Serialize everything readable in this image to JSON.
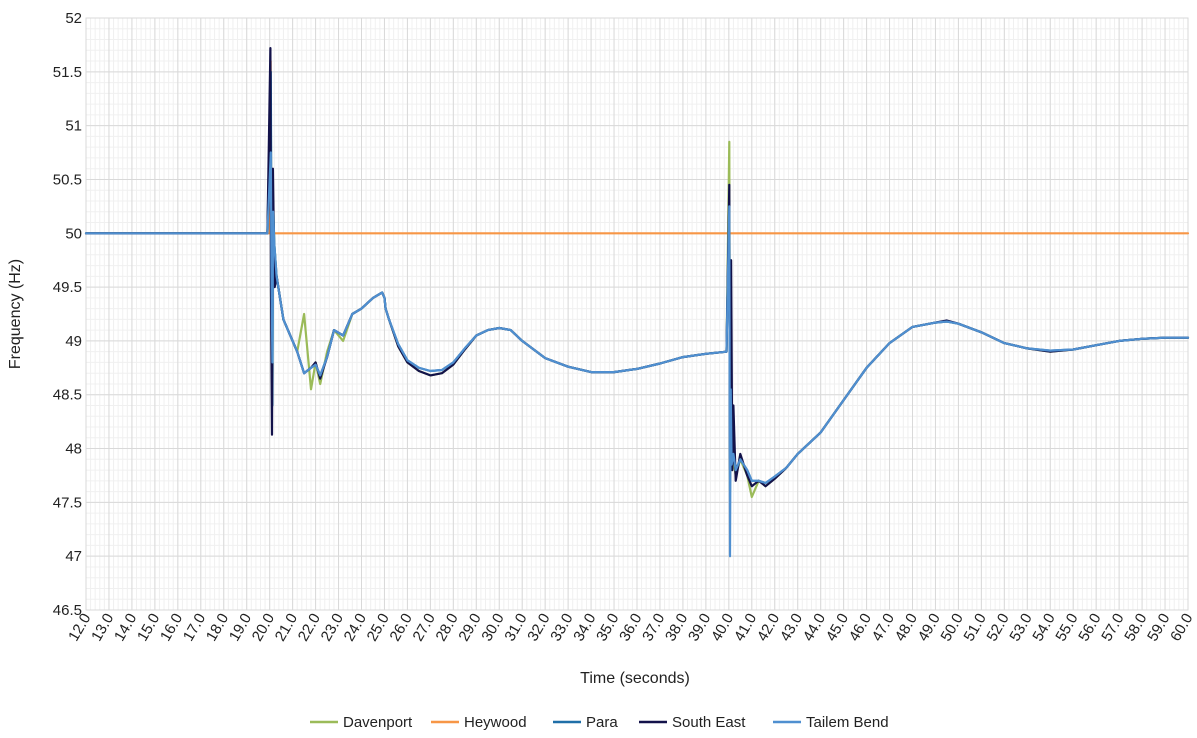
{
  "chart_data": {
    "type": "line",
    "xlabel": "Time (seconds)",
    "ylabel": "Frequency (Hz)",
    "xlim": [
      12,
      60
    ],
    "ylim": [
      46.5,
      52
    ],
    "x_ticks": [
      12,
      13,
      14,
      15,
      16,
      17,
      18,
      19,
      20,
      21,
      22,
      23,
      24,
      25,
      26,
      27,
      28,
      29,
      30,
      31,
      32,
      33,
      34,
      35,
      36,
      37,
      38,
      39,
      40,
      41,
      42,
      43,
      44,
      45,
      46,
      47,
      48,
      49,
      50,
      51,
      52,
      53,
      54,
      55,
      56,
      57,
      58,
      59,
      60
    ],
    "x_tick_labels": [
      "12.0",
      "13.0",
      "14.0",
      "15.0",
      "16.0",
      "17.0",
      "18.0",
      "19.0",
      "20.0",
      "21.0",
      "22.0",
      "23.0",
      "24.0",
      "25.0",
      "26.0",
      "27.0",
      "28.0",
      "29.0",
      "30.0",
      "31.0",
      "32.0",
      "33.0",
      "34.0",
      "35.0",
      "36.0",
      "37.0",
      "38.0",
      "39.0",
      "40.0",
      "41.0",
      "42.0",
      "43.0",
      "44.0",
      "45.0",
      "46.0",
      "47.0",
      "48.0",
      "49.0",
      "50.0",
      "51.0",
      "52.0",
      "53.0",
      "54.0",
      "55.0",
      "56.0",
      "57.0",
      "58.0",
      "59.0",
      "60.0"
    ],
    "y_ticks": [
      46.5,
      47,
      47.5,
      48,
      48.5,
      49,
      49.5,
      50,
      50.5,
      51,
      51.5,
      52
    ],
    "y_tick_labels": [
      "46.5",
      "47",
      "47.5",
      "48",
      "48.5",
      "49",
      "49.5",
      "50",
      "50.5",
      "51",
      "51.5",
      "52"
    ],
    "grid": true,
    "legend_position": "bottom",
    "series": [
      {
        "name": "Davenport",
        "color": "#9BBB59",
        "x": [
          12,
          16,
          19.9,
          20.05,
          20.08,
          20.12,
          20.15,
          20.2,
          20.3,
          20.6,
          21.2,
          21.5,
          21.8,
          22.0,
          22.2,
          22.5,
          22.8,
          23.2,
          23.6,
          24.0,
          24.5,
          24.9,
          25.0,
          25.05,
          25.2,
          25.6,
          26.0,
          26.5,
          27.0,
          27.5,
          28.0,
          28.5,
          29.0,
          29.5,
          30.0,
          30.5,
          31.0,
          31.5,
          32.0,
          33.0,
          34.0,
          35.0,
          36.0,
          37.0,
          38.0,
          39.0,
          39.9,
          40.02,
          40.05,
          40.1,
          40.15,
          40.2,
          40.3,
          40.5,
          40.8,
          41.0,
          41.3,
          41.6,
          42.0,
          42.5,
          43.0,
          44.0,
          45.0,
          46.0,
          47.0,
          48.0,
          49.0,
          49.5,
          50.0,
          51.0,
          52.0,
          53.0,
          54.0,
          55.0,
          56.0,
          57.0,
          58.0,
          59.0,
          60.0
        ],
        "y": [
          50,
          50,
          50,
          51.2,
          49.6,
          48.6,
          50.3,
          49.9,
          49.6,
          49.2,
          48.9,
          49.25,
          48.55,
          48.8,
          48.6,
          48.9,
          49.1,
          49.0,
          49.25,
          49.3,
          49.4,
          49.45,
          49.4,
          49.3,
          49.2,
          48.95,
          48.8,
          48.72,
          48.68,
          48.7,
          48.78,
          48.92,
          49.05,
          49.1,
          49.12,
          49.1,
          49.0,
          48.92,
          48.84,
          48.76,
          48.71,
          48.71,
          48.74,
          48.79,
          48.85,
          48.88,
          48.9,
          50.85,
          47.6,
          48.7,
          47.8,
          47.9,
          47.75,
          47.9,
          47.75,
          47.55,
          47.7,
          47.65,
          47.72,
          47.82,
          47.95,
          48.15,
          48.45,
          48.75,
          48.98,
          49.13,
          49.17,
          49.18,
          49.16,
          49.08,
          48.98,
          48.93,
          48.9,
          48.92,
          48.96,
          49.0,
          49.02,
          49.03,
          49.03
        ]
      },
      {
        "name": "Heywood",
        "color": "#F79646",
        "x": [
          12,
          20,
          20.04,
          20.06,
          20.1,
          60
        ],
        "y": [
          50,
          50,
          51.6,
          50,
          50,
          50
        ]
      },
      {
        "name": "Para",
        "color": "#1F6FA8",
        "x": [
          12,
          16,
          19.9,
          20.05,
          20.08,
          20.12,
          20.15,
          20.2,
          20.3,
          20.6,
          21.2,
          21.5,
          21.8,
          22.0,
          22.2,
          22.5,
          22.8,
          23.2,
          23.6,
          24.0,
          24.5,
          24.9,
          25.0,
          25.05,
          25.2,
          25.6,
          26.0,
          26.5,
          27.0,
          27.5,
          28.0,
          28.5,
          29.0,
          29.5,
          30.0,
          30.5,
          31.0,
          31.5,
          32.0,
          33.0,
          34.0,
          35.0,
          36.0,
          37.0,
          38.0,
          39.0,
          39.9,
          40.02,
          40.05,
          40.1,
          40.15,
          40.2,
          40.3,
          40.5,
          40.8,
          41.0,
          41.3,
          41.6,
          42.0,
          42.5,
          43.0,
          44.0,
          45.0,
          46.0,
          47.0,
          48.0,
          49.0,
          49.5,
          50.0,
          51.0,
          52.0,
          53.0,
          54.0,
          55.0,
          56.0,
          57.0,
          58.0,
          59.0,
          60.0
        ],
        "y": [
          50,
          50,
          50,
          51.5,
          49.7,
          48.4,
          50.3,
          49.9,
          49.6,
          49.2,
          48.9,
          48.7,
          48.75,
          48.78,
          48.68,
          48.85,
          49.1,
          49.05,
          49.25,
          49.3,
          49.4,
          49.45,
          49.4,
          49.3,
          49.2,
          48.97,
          48.82,
          48.75,
          48.72,
          48.73,
          48.8,
          48.93,
          49.05,
          49.1,
          49.12,
          49.1,
          49.0,
          48.92,
          48.84,
          48.76,
          48.71,
          48.71,
          48.74,
          48.79,
          48.85,
          48.88,
          48.9,
          50.3,
          47.9,
          48.6,
          47.85,
          47.95,
          47.8,
          47.9,
          47.8,
          47.7,
          47.7,
          47.68,
          47.74,
          47.82,
          47.95,
          48.15,
          48.45,
          48.75,
          48.98,
          49.13,
          49.17,
          49.18,
          49.16,
          49.08,
          48.98,
          48.93,
          48.91,
          48.92,
          48.96,
          49.0,
          49.02,
          49.03,
          49.03
        ]
      },
      {
        "name": "South East",
        "color": "#13124A",
        "x": [
          12,
          16,
          19.9,
          20.03,
          20.06,
          20.1,
          20.14,
          20.18,
          20.22,
          20.3,
          20.6,
          21.2,
          21.5,
          21.8,
          22.0,
          22.2,
          22.5,
          22.8,
          23.2,
          23.6,
          24.0,
          24.5,
          24.9,
          25.0,
          25.05,
          25.2,
          25.6,
          26.0,
          26.5,
          27.0,
          27.5,
          28.0,
          28.5,
          29.0,
          29.5,
          30.0,
          30.5,
          31.0,
          31.5,
          32.0,
          33.0,
          34.0,
          35.0,
          36.0,
          37.0,
          38.0,
          39.0,
          39.9,
          40.02,
          40.05,
          40.1,
          40.15,
          40.2,
          40.3,
          40.5,
          40.8,
          41.0,
          41.3,
          41.6,
          42.0,
          42.5,
          43.0,
          44.0,
          45.0,
          46.0,
          47.0,
          48.0,
          49.0,
          49.5,
          50.0,
          51.0,
          52.0,
          53.0,
          54.0,
          55.0,
          56.0,
          57.0,
          58.0,
          59.0,
          60.0
        ],
        "y": [
          50,
          50,
          50,
          51.72,
          49.5,
          48.13,
          50.6,
          50.0,
          49.5,
          49.6,
          49.2,
          48.9,
          48.7,
          48.75,
          48.8,
          48.65,
          48.85,
          49.1,
          49.05,
          49.25,
          49.3,
          49.4,
          49.45,
          49.4,
          49.3,
          49.2,
          48.95,
          48.8,
          48.72,
          48.68,
          48.7,
          48.78,
          48.92,
          49.05,
          49.1,
          49.12,
          49.1,
          49.0,
          48.92,
          48.84,
          48.76,
          48.71,
          48.71,
          48.74,
          48.79,
          48.85,
          48.88,
          48.9,
          50.45,
          47.8,
          49.75,
          47.8,
          48.4,
          47.7,
          47.95,
          47.75,
          47.65,
          47.7,
          47.65,
          47.72,
          47.82,
          47.95,
          48.15,
          48.45,
          48.75,
          48.98,
          49.13,
          49.17,
          49.19,
          49.16,
          49.08,
          48.98,
          48.93,
          48.9,
          48.92,
          48.96,
          49.0,
          49.02,
          49.03,
          49.03
        ]
      },
      {
        "name": "Tailem Bend",
        "color": "#4F8FD0",
        "x": [
          12,
          16,
          19.9,
          20.05,
          20.08,
          20.12,
          20.15,
          20.2,
          20.3,
          20.6,
          21.2,
          21.5,
          21.8,
          22.0,
          22.2,
          22.5,
          22.8,
          23.2,
          23.6,
          24.0,
          24.5,
          24.9,
          25.0,
          25.05,
          25.2,
          25.6,
          26.0,
          26.5,
          27.0,
          27.5,
          28.0,
          28.5,
          29.0,
          29.5,
          30.0,
          30.5,
          31.0,
          31.5,
          32.0,
          33.0,
          34.0,
          35.0,
          36.0,
          37.0,
          38.0,
          39.0,
          39.9,
          40.02,
          40.05,
          40.08,
          40.12,
          40.2,
          40.3,
          40.5,
          40.8,
          41.0,
          41.3,
          41.6,
          42.0,
          42.5,
          43.0,
          44.0,
          45.0,
          46.0,
          47.0,
          48.0,
          49.0,
          49.5,
          50.0,
          51.0,
          52.0,
          53.0,
          54.0,
          55.0,
          56.0,
          57.0,
          58.0,
          59.0,
          60.0
        ],
        "y": [
          50,
          50,
          50,
          50.75,
          49.7,
          48.8,
          50.2,
          49.9,
          49.6,
          49.2,
          48.9,
          48.7,
          48.75,
          48.78,
          48.68,
          48.85,
          49.1,
          49.05,
          49.25,
          49.3,
          49.4,
          49.45,
          49.4,
          49.3,
          49.2,
          48.97,
          48.82,
          48.75,
          48.72,
          48.73,
          48.8,
          48.93,
          49.05,
          49.1,
          49.12,
          49.1,
          49.0,
          48.92,
          48.84,
          48.76,
          48.71,
          48.71,
          48.74,
          48.79,
          48.85,
          48.88,
          48.9,
          50.25,
          47.0,
          48.55,
          47.85,
          47.95,
          47.8,
          47.9,
          47.8,
          47.7,
          47.7,
          47.68,
          47.74,
          47.82,
          47.95,
          48.15,
          48.45,
          48.75,
          48.98,
          49.13,
          49.17,
          49.18,
          49.16,
          49.08,
          48.98,
          48.93,
          48.91,
          48.92,
          48.96,
          49.0,
          49.02,
          49.03,
          49.03
        ]
      }
    ]
  }
}
